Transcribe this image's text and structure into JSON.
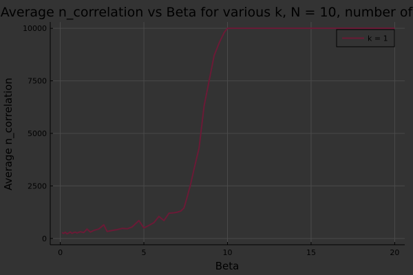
{
  "chart_data": {
    "type": "line",
    "title": "Average n_correlation vs Beta for various k, N = 10, number of",
    "xlabel": "Beta",
    "ylabel": "Average n_correlation",
    "xlim": [
      -0.6,
      20.6
    ],
    "ylim": [
      -300,
      10300
    ],
    "xticks": [
      0,
      5,
      10,
      15,
      20
    ],
    "yticks": [
      0,
      2500,
      5000,
      7500,
      10000
    ],
    "xtick_labels": [
      "0",
      "5",
      "10",
      "15",
      "20"
    ],
    "ytick_labels": [
      "0",
      "2500",
      "5000",
      "7500",
      "10000"
    ],
    "grid": true,
    "legend_position": "top-right",
    "series": [
      {
        "name": "k = 1",
        "color": "#6b1a36",
        "x": [
          0.1,
          0.2,
          0.3,
          0.4,
          0.5,
          0.6,
          0.7,
          0.8,
          0.9,
          1.0,
          1.2,
          1.4,
          1.6,
          1.8,
          2.0,
          2.3,
          2.6,
          2.8,
          3.1,
          3.4,
          3.7,
          4.0,
          4.3,
          4.7,
          5.0,
          5.3,
          5.6,
          5.9,
          6.2,
          6.5,
          6.8,
          7.0,
          7.2,
          7.4,
          7.6,
          7.8,
          8.0,
          8.3,
          8.6,
          8.9,
          9.2,
          9.5,
          9.8,
          10.0,
          11.0,
          12.0,
          13.0,
          14.0,
          15.0,
          16.0,
          17.0,
          18.0,
          19.0,
          20.0
        ],
        "y": [
          280,
          240,
          300,
          220,
          260,
          310,
          240,
          280,
          300,
          260,
          320,
          280,
          450,
          300,
          380,
          450,
          650,
          330,
          380,
          420,
          480,
          460,
          550,
          850,
          500,
          620,
          750,
          1050,
          850,
          1200,
          1220,
          1250,
          1300,
          1450,
          2000,
          2600,
          3300,
          4300,
          6300,
          7500,
          8700,
          9300,
          9800,
          10000,
          10000,
          10000,
          10000,
          10000,
          10000,
          10000,
          10000,
          10000,
          10000,
          10000
        ]
      }
    ]
  }
}
